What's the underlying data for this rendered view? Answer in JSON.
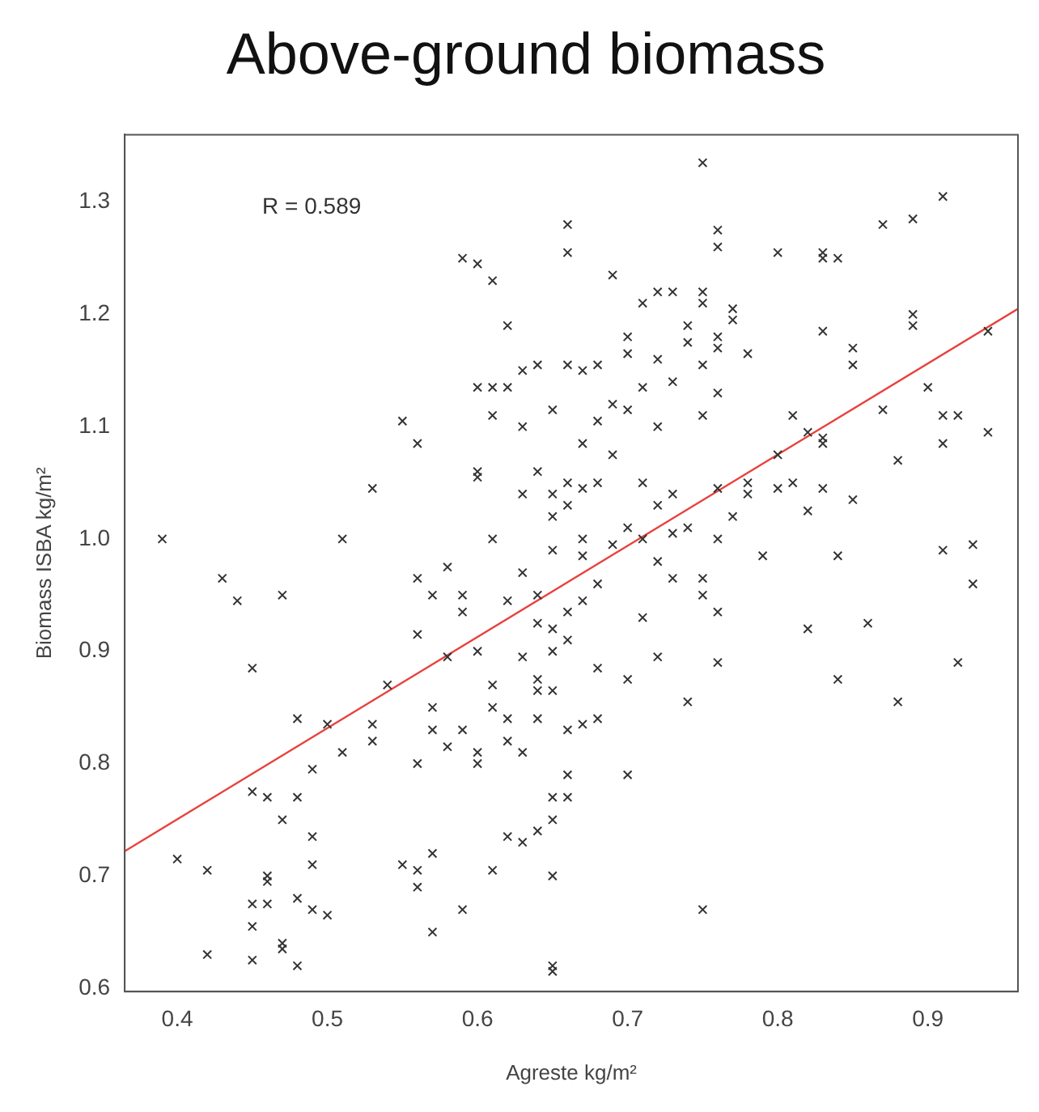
{
  "chart_data": {
    "type": "scatter",
    "title": "Above-ground biomass",
    "xlabel": "Agreste kg/m²",
    "ylabel": "Biomass ISBA kg/m²",
    "annotations": [
      "R = 0.589"
    ],
    "xlim": [
      0.365,
      0.96
    ],
    "ylim": [
      0.597,
      1.36
    ],
    "xticks": [
      0.4,
      0.5,
      0.6,
      0.7,
      0.8,
      0.9
    ],
    "yticks": [
      0.6,
      0.7,
      0.8,
      0.9,
      {
        "value": 1,
        "label": "1.0"
      },
      1.1,
      1.2,
      1.3
    ],
    "grid": false,
    "legend": false,
    "series": [
      {
        "type": "scatter",
        "color": "#333333",
        "marker": "cross",
        "x": [
          0.39,
          0.4,
          0.42,
          0.42,
          0.43,
          0.44,
          0.45,
          0.45,
          0.45,
          0.45,
          0.45,
          0.46,
          0.46,
          0.46,
          0.46,
          0.47,
          0.47,
          0.47,
          0.47,
          0.48,
          0.48,
          0.48,
          0.48,
          0.49,
          0.49,
          0.49,
          0.49,
          0.5,
          0.5,
          0.51,
          0.51,
          0.53,
          0.53,
          0.53,
          0.54,
          0.55,
          0.55,
          0.56,
          0.56,
          0.56,
          0.56,
          0.56,
          0.56,
          0.57,
          0.57,
          0.57,
          0.57,
          0.57,
          0.58,
          0.58,
          0.58,
          0.59,
          0.59,
          0.59,
          0.59,
          0.59,
          0.6,
          0.6,
          0.6,
          0.6,
          0.6,
          0.6,
          0.6,
          0.61,
          0.61,
          0.61,
          0.61,
          0.61,
          0.61,
          0.61,
          0.62,
          0.62,
          0.62,
          0.62,
          0.62,
          0.62,
          0.63,
          0.63,
          0.63,
          0.63,
          0.63,
          0.63,
          0.63,
          0.64,
          0.64,
          0.64,
          0.64,
          0.64,
          0.64,
          0.64,
          0.64,
          0.65,
          0.65,
          0.65,
          0.65,
          0.65,
          0.65,
          0.65,
          0.65,
          0.65,
          0.65,
          0.65,
          0.65,
          0.66,
          0.66,
          0.66,
          0.66,
          0.66,
          0.66,
          0.66,
          0.66,
          0.66,
          0.66,
          0.67,
          0.67,
          0.67,
          0.67,
          0.67,
          0.67,
          0.67,
          0.68,
          0.68,
          0.68,
          0.68,
          0.68,
          0.68,
          0.69,
          0.69,
          0.69,
          0.69,
          0.7,
          0.7,
          0.7,
          0.7,
          0.7,
          0.7,
          0.71,
          0.71,
          0.71,
          0.71,
          0.71,
          0.72,
          0.72,
          0.72,
          0.72,
          0.72,
          0.72,
          0.73,
          0.73,
          0.73,
          0.73,
          0.73,
          0.74,
          0.74,
          0.74,
          0.74,
          0.75,
          0.75,
          0.75,
          0.75,
          0.75,
          0.75,
          0.75,
          0.75,
          0.76,
          0.76,
          0.76,
          0.76,
          0.76,
          0.76,
          0.76,
          0.76,
          0.76,
          0.77,
          0.77,
          0.77,
          0.78,
          0.78,
          0.78,
          0.79,
          0.8,
          0.8,
          0.8,
          0.81,
          0.81,
          0.82,
          0.82,
          0.82,
          0.83,
          0.83,
          0.83,
          0.83,
          0.83,
          0.83,
          0.84,
          0.84,
          0.84,
          0.85,
          0.85,
          0.85,
          0.86,
          0.87,
          0.87,
          0.88,
          0.88,
          0.89,
          0.89,
          0.89,
          0.9,
          0.91,
          0.91,
          0.91,
          0.91,
          0.92,
          0.92,
          0.93,
          0.93,
          0.94,
          0.94
        ],
        "values": [
          1.0,
          0.715,
          0.705,
          0.63,
          0.965,
          0.945,
          0.885,
          0.775,
          0.675,
          0.655,
          0.625,
          0.77,
          0.7,
          0.695,
          0.675,
          0.95,
          0.75,
          0.64,
          0.635,
          0.84,
          0.77,
          0.68,
          0.62,
          0.795,
          0.735,
          0.71,
          0.67,
          0.835,
          0.665,
          1.0,
          0.81,
          1.045,
          0.835,
          0.82,
          0.87,
          1.105,
          0.71,
          1.085,
          0.965,
          0.915,
          0.8,
          0.705,
          0.69,
          0.95,
          0.85,
          0.83,
          0.72,
          0.65,
          0.975,
          0.895,
          0.815,
          1.25,
          0.95,
          0.935,
          0.83,
          0.67,
          1.245,
          1.135,
          1.06,
          1.055,
          0.9,
          0.81,
          0.8,
          1.23,
          1.135,
          1.11,
          1.0,
          0.87,
          0.85,
          0.705,
          1.19,
          1.135,
          0.945,
          0.84,
          0.82,
          0.735,
          1.15,
          1.1,
          1.04,
          0.97,
          0.895,
          0.81,
          0.73,
          1.155,
          1.06,
          0.95,
          0.925,
          0.875,
          0.865,
          0.84,
          0.74,
          1.115,
          1.04,
          1.02,
          0.99,
          0.92,
          0.9,
          0.865,
          0.77,
          0.75,
          0.7,
          0.62,
          0.615,
          1.28,
          1.255,
          1.155,
          1.05,
          1.03,
          0.935,
          0.91,
          0.83,
          0.79,
          0.77,
          1.15,
          1.085,
          1.045,
          1.0,
          0.985,
          0.945,
          0.835,
          1.155,
          1.105,
          1.05,
          0.96,
          0.885,
          0.84,
          1.235,
          1.12,
          1.075,
          0.995,
          1.18,
          1.165,
          1.115,
          1.01,
          0.875,
          0.79,
          1.21,
          1.135,
          1.05,
          1.0,
          0.93,
          1.22,
          1.16,
          1.1,
          1.03,
          0.98,
          0.895,
          1.22,
          1.14,
          1.04,
          1.005,
          0.965,
          1.19,
          1.175,
          1.01,
          0.855,
          1.335,
          1.22,
          1.21,
          1.155,
          1.11,
          0.965,
          0.95,
          0.67,
          1.275,
          1.26,
          1.18,
          1.17,
          1.13,
          1.045,
          1.0,
          0.935,
          0.89,
          1.205,
          1.195,
          1.02,
          1.165,
          1.05,
          1.04,
          0.985,
          1.255,
          1.075,
          1.045,
          1.11,
          1.05,
          1.095,
          1.025,
          0.92,
          1.255,
          1.25,
          1.185,
          1.09,
          1.085,
          1.045,
          1.25,
          0.985,
          0.875,
          1.17,
          1.155,
          1.035,
          0.925,
          1.28,
          1.115,
          1.07,
          0.855,
          1.285,
          1.2,
          1.19,
          1.135,
          1.305,
          1.11,
          1.085,
          0.99,
          1.11,
          0.89,
          0.995,
          0.96,
          1.185,
          1.095
        ]
      },
      {
        "type": "line",
        "color": "#e8413c",
        "line_style": "solid",
        "marker": "none",
        "x": [
          0.365,
          0.96
        ],
        "values": [
          0.722,
          1.205
        ]
      }
    ]
  }
}
